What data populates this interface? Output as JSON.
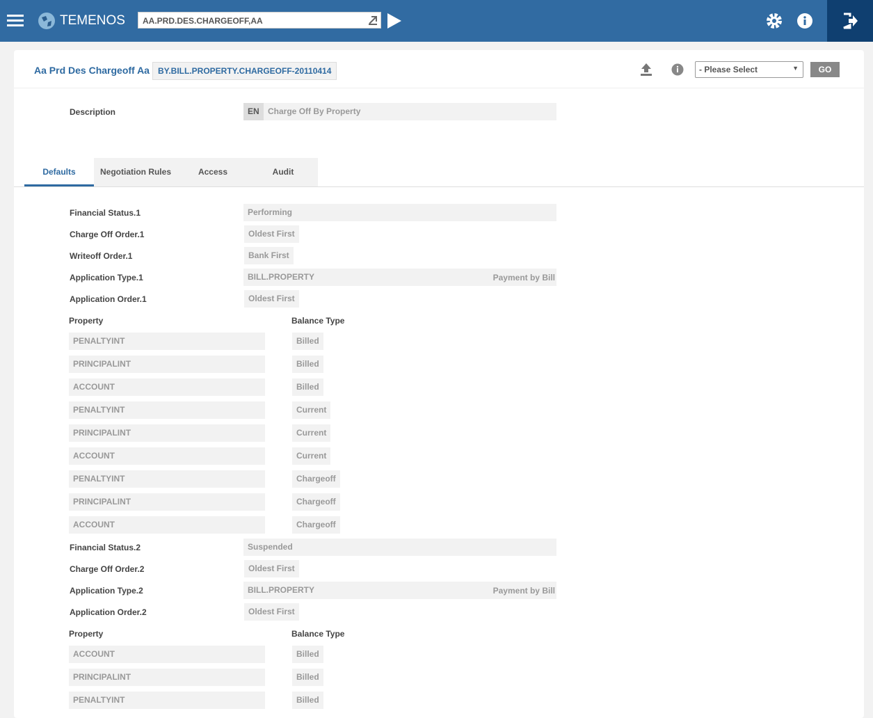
{
  "header": {
    "brand": "TEMENOS",
    "command": "AA.PRD.DES.CHARGEOFF,AA"
  },
  "page": {
    "title": "Aa Prd Des Chargeoff Aa",
    "record_id": "BY.BILL.PROPERTY.CHARGEOFF-20110414",
    "select_value": "- Please Select",
    "go_label": "GO"
  },
  "description": {
    "label": "Description",
    "lang": "EN",
    "value": "Charge Off By Property"
  },
  "tabs": [
    {
      "label": "Defaults",
      "active": true
    },
    {
      "label": "Negotiation Rules"
    },
    {
      "label": "Access"
    },
    {
      "label": "Audit"
    }
  ],
  "colors": {
    "header": "#316ba2",
    "accent": "#2e6aa1"
  },
  "sections": [
    {
      "fields": [
        {
          "label": "Financial Status.1",
          "value": "Performing",
          "wide": true
        },
        {
          "label": "Charge Off Order.1",
          "value": "Oldest First"
        },
        {
          "label": "Writeoff Order.1",
          "value": "Bank First"
        },
        {
          "label": "Application Type.1",
          "value": "BILL.PROPERTY",
          "wide": true,
          "extra": "Payment by Bill"
        },
        {
          "label": "Application Order.1",
          "value": "Oldest First"
        }
      ],
      "property_header": "Property",
      "balance_header": "Balance Type",
      "rows": [
        [
          "PENALTYINT",
          "Billed"
        ],
        [
          "PRINCIPALINT",
          "Billed"
        ],
        [
          "ACCOUNT",
          "Billed"
        ],
        [
          "PENALTYINT",
          "Current"
        ],
        [
          "PRINCIPALINT",
          "Current"
        ],
        [
          "ACCOUNT",
          "Current"
        ],
        [
          "PENALTYINT",
          "Chargeoff"
        ],
        [
          "PRINCIPALINT",
          "Chargeoff"
        ],
        [
          "ACCOUNT",
          "Chargeoff"
        ]
      ]
    },
    {
      "fields": [
        {
          "label": "Financial Status.2",
          "value": "Suspended",
          "wide": true
        },
        {
          "label": "Charge Off Order.2",
          "value": "Oldest First"
        },
        {
          "label": "Application Type.2",
          "value": "BILL.PROPERTY",
          "wide": true,
          "extra": "Payment by Bill"
        },
        {
          "label": "Application Order.2",
          "value": "Oldest First"
        }
      ],
      "property_header": "Property",
      "balance_header": "Balance Type",
      "rows": [
        [
          "ACCOUNT",
          "Billed"
        ],
        [
          "PRINCIPALINT",
          "Billed"
        ],
        [
          "PENALTYINT",
          "Billed"
        ]
      ]
    }
  ]
}
